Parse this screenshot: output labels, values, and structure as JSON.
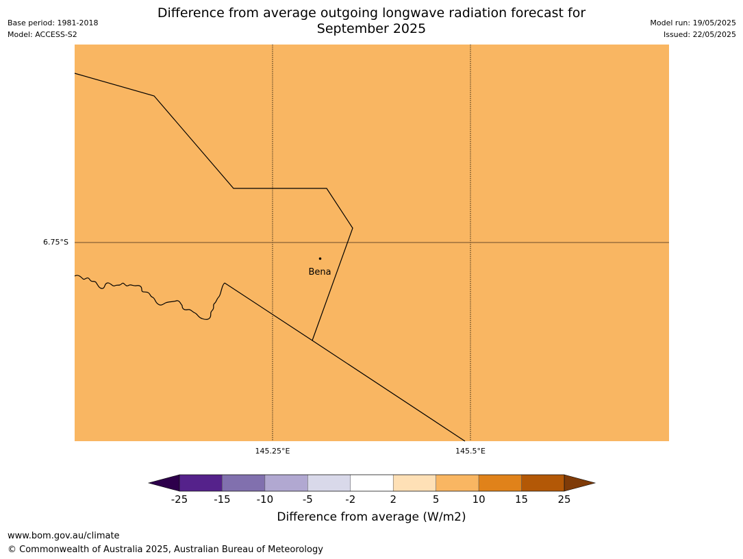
{
  "header": {
    "title_line1": "Difference from average outgoing longwave radiation forecast for",
    "title_line2": "September 2025",
    "base_period": "Base period: 1981-2018",
    "model": "Model: ACCESS-S2",
    "model_run": "Model run: 19/05/2025",
    "issued": "Issued: 22/05/2025"
  },
  "map": {
    "fill_color": "#f9b662",
    "lat_label": "6.75°S",
    "lon_labels": [
      "145.25°E",
      "145.5°E"
    ],
    "place": {
      "name": "Bena"
    }
  },
  "colorbar": {
    "ticks": [
      "-25",
      "-15",
      "-10",
      "-5",
      "-2",
      "2",
      "5",
      "10",
      "15",
      "25"
    ],
    "colors": [
      "#55228b",
      "#8170ae",
      "#b1a8d1",
      "#d9d9ea",
      "#ffffff",
      "#fee0b6",
      "#f9b662",
      "#e0821a",
      "#b35806"
    ],
    "low_extend_color": "#2d004b",
    "high_extend_color": "#7f3b08",
    "label": "Difference from average (W/m2)"
  },
  "footer": {
    "website": "www.bom.gov.au/climate",
    "copyright": "© Commonwealth of Australia 2025, Australian Bureau of Meteorology"
  }
}
